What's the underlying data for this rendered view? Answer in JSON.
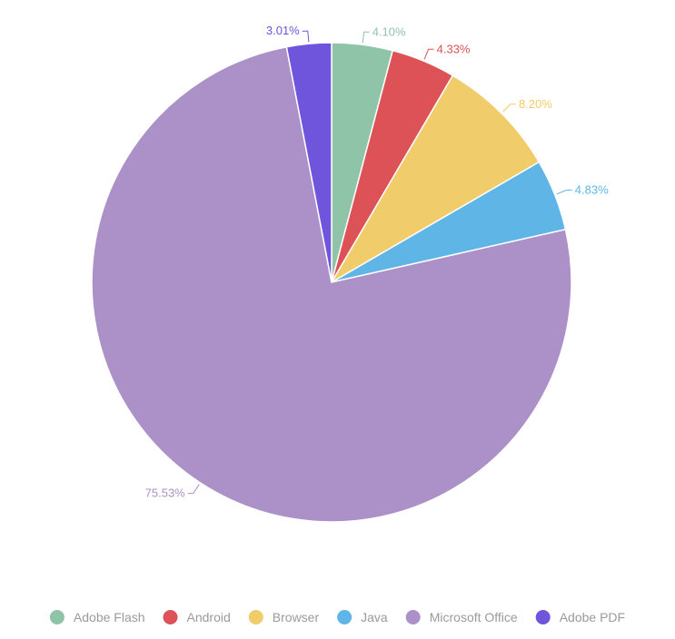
{
  "chart_data": {
    "type": "pie",
    "start_angle_deg": 0,
    "direction": "clockwise",
    "legend_position": "bottom",
    "label_format": "percent",
    "slices": [
      {
        "name": "Adobe Flash",
        "value": 4.1,
        "label": "4.10%",
        "color": "#8fc4a8"
      },
      {
        "name": "Android",
        "value": 4.33,
        "label": "4.33%",
        "color": "#dc5256"
      },
      {
        "name": "Browser",
        "value": 8.2,
        "label": "8.20%",
        "color": "#f0cc6a"
      },
      {
        "name": "Java",
        "value": 4.83,
        "label": "4.83%",
        "color": "#5fb6e6"
      },
      {
        "name": "Microsoft Office",
        "value": 75.53,
        "label": "75.53%",
        "color": "#ab91c7"
      },
      {
        "name": "Adobe PDF",
        "value": 3.01,
        "label": "3.01%",
        "color": "#6f54dc"
      }
    ]
  }
}
